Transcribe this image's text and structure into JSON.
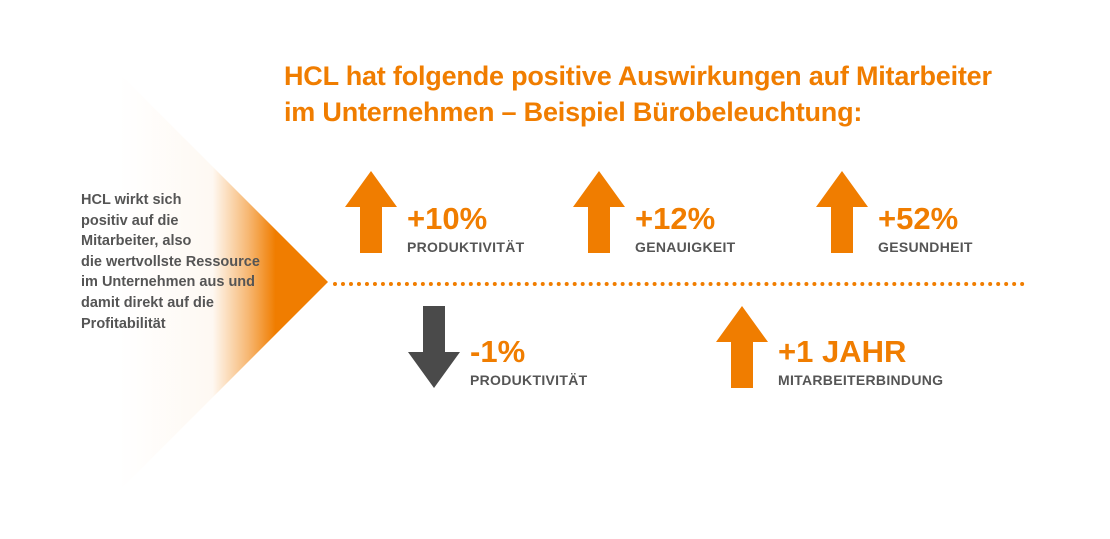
{
  "colors": {
    "accent": "#f07d00",
    "neutral": "#555555"
  },
  "title": {
    "line1": "HCL hat folgende positive Auswirkungen auf Mitarbeiter",
    "line2": "im Unternehmen – Beispiel Bürobeleuchtung:"
  },
  "side_text": {
    "lines": [
      "HCL wirkt sich",
      "positiv auf die",
      "Mitarbeiter, also",
      "die wertvollste Ressource",
      "im Unternehmen aus und",
      "damit direkt auf die",
      "Profitabilität"
    ]
  },
  "effects": {
    "top": [
      {
        "value": "+10%",
        "label": "PRODUKTIVITÄT",
        "direction": "up",
        "icon": "arrow-up-icon"
      },
      {
        "value": "+12%",
        "label": "GENAUIGKEIT",
        "direction": "up",
        "icon": "arrow-up-icon"
      },
      {
        "value": "+52%",
        "label": "GESUNDHEIT",
        "direction": "up",
        "icon": "arrow-up-icon"
      }
    ],
    "bottom": [
      {
        "value": "-1%",
        "label": "PRODUKTIVITÄT",
        "direction": "down",
        "icon": "arrow-down-icon"
      },
      {
        "value": "+1 JAHR",
        "label": "MITARBEITERBINDUNG",
        "direction": "up",
        "icon": "arrow-up-icon"
      }
    ]
  }
}
